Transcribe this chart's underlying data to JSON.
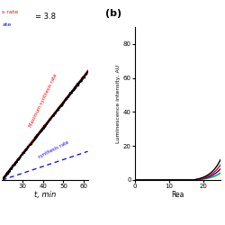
{
  "panel_a": {
    "xlabel": "t, min",
    "black_slope": 1.85,
    "red_slope": 1.85,
    "blue_slope": 0.49,
    "annotation_ratio": "= 3.8",
    "red_label": "s rate",
    "blue_label": "ate",
    "max_label": "Maximum synthesis rate",
    "min_label": "synthesis rate",
    "ylim": [
      0,
      110
    ],
    "xlim": [
      20,
      62
    ],
    "xticks": [
      30,
      40,
      50,
      60
    ],
    "tick_font": 5
  },
  "panel_b": {
    "label": "(b)",
    "xlabel": "Rea",
    "ylabel": "Luminescence intensity, AU",
    "xlim": [
      0,
      25
    ],
    "ylim": [
      0,
      90
    ],
    "yticks": [
      0,
      20,
      40,
      60,
      80
    ],
    "xticks": [
      0,
      10,
      20
    ],
    "curve_colors": [
      "#000000",
      "#ff0000",
      "#0000ff",
      "#00aa00"
    ],
    "curve_scales": [
      1.0,
      0.75,
      0.55,
      0.35
    ],
    "exp_rate": 0.32,
    "lag": 17.0
  },
  "bg_color": "#ffffff"
}
